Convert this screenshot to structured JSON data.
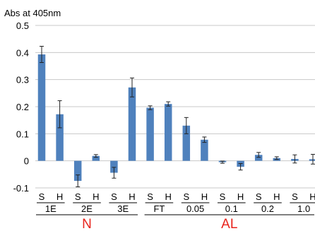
{
  "chart_data": {
    "type": "bar",
    "ylabel": "Abs at 405nm",
    "ylim": [
      -0.1,
      0.5
    ],
    "yticks": [
      -0.1,
      0,
      0.1,
      0.2,
      0.3,
      0.4,
      0.5
    ],
    "ytick_labels": [
      "-0.1",
      "0",
      "0.1",
      "0.2",
      "0.3",
      "0.4",
      "0.5"
    ],
    "grid": true,
    "color": "#4f81bd",
    "groups": [
      {
        "label": "1E",
        "bars": [
          {
            "label": "S",
            "value": 0.393,
            "error": 0.03
          },
          {
            "label": "H",
            "value": 0.172,
            "error": 0.05
          }
        ]
      },
      {
        "label": "2E",
        "bars": [
          {
            "label": "S",
            "value": -0.074,
            "error": 0.022
          },
          {
            "label": "H",
            "value": 0.018,
            "error": 0.005
          }
        ]
      },
      {
        "label": "3E",
        "bars": [
          {
            "label": "S",
            "value": -0.044,
            "error": 0.02
          },
          {
            "label": "H",
            "value": 0.271,
            "error": 0.035
          }
        ]
      },
      {
        "label": "FT",
        "bars": [
          {
            "label": "S",
            "value": 0.196,
            "error": 0.007
          },
          {
            "label": "H",
            "value": 0.21,
            "error": 0.008
          }
        ]
      },
      {
        "label": "0.05",
        "bars": [
          {
            "label": "S",
            "value": 0.13,
            "error": 0.03
          },
          {
            "label": "H",
            "value": 0.078,
            "error": 0.01
          }
        ]
      },
      {
        "label": "0.1",
        "bars": [
          {
            "label": "S",
            "value": -0.005,
            "error": 0.004
          },
          {
            "label": "H",
            "value": -0.022,
            "error": 0.012
          }
        ]
      },
      {
        "label": "0.2",
        "bars": [
          {
            "label": "S",
            "value": 0.022,
            "error": 0.009
          },
          {
            "label": "H",
            "value": 0.01,
            "error": 0.005
          }
        ]
      },
      {
        "label": "1.0",
        "bars": [
          {
            "label": "S",
            "value": 0.007,
            "error": 0.015
          },
          {
            "label": "H",
            "value": 0.006,
            "error": 0.018
          }
        ]
      }
    ],
    "categories_top": [
      {
        "label": "N",
        "groups": [
          0,
          1,
          2
        ]
      },
      {
        "label": "AL",
        "groups": [
          3,
          4,
          5,
          6,
          7
        ]
      }
    ]
  }
}
